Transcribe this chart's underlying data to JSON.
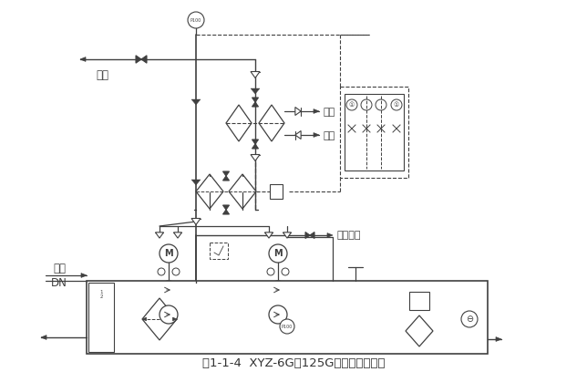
{
  "title": "图1-1-4  XYZ-6G～125G型稀油站原理图",
  "title_fontsize": 9.5,
  "bg_color": "#ffffff",
  "line_color": "#404040",
  "label_gong_you": "供油",
  "label_hui_you": "回油",
  "label_DN": "DN",
  "label_chu_shui": "出水",
  "label_jin_shui": "进水",
  "label_pai_wu_you_kou": "排污油口",
  "figsize": [
    6.44,
    4.08
  ],
  "dpi": 100
}
